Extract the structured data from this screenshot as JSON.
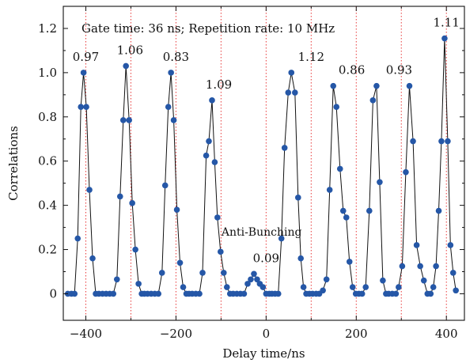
{
  "chart_data": {
    "type": "scatter",
    "title": "",
    "xlabel": "Delay time/ns",
    "ylabel": "Correlations",
    "xlim": [
      -450,
      440
    ],
    "ylim": [
      -0.12,
      1.3
    ],
    "xticks": [
      -400,
      -200,
      0,
      200,
      400
    ],
    "xtick_labels": [
      "−400",
      "−200",
      "0",
      "200",
      "400"
    ],
    "yticks": [
      0,
      0.2,
      0.4,
      0.6,
      0.8,
      1.0,
      1.2
    ],
    "ytick_labels": [
      "0",
      "0.2",
      "0.4",
      "0.6",
      "0.8",
      "1.0",
      "1.2"
    ],
    "grid": false,
    "vlines": [
      -400,
      -300,
      -200,
      -100,
      0,
      100,
      200,
      300,
      400
    ],
    "vline_color": "#e83a3a",
    "marker_color": "#2557a7",
    "line_color": "#111111",
    "annotation": "Gate time: 36 ns; Repetition rate: 10 MHz",
    "anti_bunching_label": "Anti-Bunching",
    "peak_labels": [
      {
        "text": "0.97",
        "x": -400,
        "y": 1.0
      },
      {
        "text": "1.06",
        "x": -302,
        "y": 1.03
      },
      {
        "text": "0.83",
        "x": -200,
        "y": 1.0
      },
      {
        "text": "1.09",
        "x": -105,
        "y": 0.875
      },
      {
        "text": "0.09",
        "x": 0,
        "y": 0.09
      },
      {
        "text": "1.12",
        "x": 100,
        "y": 1.0
      },
      {
        "text": "0.86",
        "x": 190,
        "y": 0.94
      },
      {
        "text": "0.93",
        "x": 295,
        "y": 0.94
      },
      {
        "text": "1.11",
        "x": 400,
        "y": 1.155
      }
    ],
    "series": [
      {
        "x": [
          -440,
          -432,
          -425,
          -418,
          -411,
          -405,
          -399,
          -392,
          -385,
          -378,
          -371,
          -363,
          -355,
          -347,
          -339,
          -331,
          -324,
          -317,
          -311,
          -304,
          -297,
          -290,
          -283,
          -276,
          -270,
          -263,
          -255,
          -247,
          -239,
          -231,
          -224,
          -217,
          -211,
          -205,
          -198,
          -191,
          -184,
          -177,
          -171,
          -164,
          -156,
          -148,
          -141,
          -133,
          -127,
          -120,
          -114,
          -108,
          -101,
          -94,
          -87,
          -80,
          -73,
          -65,
          -57,
          -49,
          -41,
          -34,
          -27,
          -20,
          -14,
          -7,
          0,
          7,
          13,
          20,
          27,
          34,
          41,
          49,
          56,
          64,
          71,
          77,
          83,
          89,
          96,
          103,
          111,
          118,
          126,
          134,
          141,
          149,
          156,
          164,
          171,
          178,
          185,
          192,
          199,
          206,
          213,
          221,
          229,
          237,
          245,
          252,
          259,
          266,
          272,
          280,
          288,
          294,
          302,
          310,
          318,
          326,
          334,
          342,
          350,
          358,
          365,
          371,
          377,
          383,
          389,
          396,
          403,
          409,
          415,
          421
        ],
        "y": [
          0,
          0,
          0,
          0.25,
          0.845,
          1.0,
          0.845,
          0.47,
          0.16,
          0,
          0,
          0,
          0,
          0,
          0,
          0.065,
          0.44,
          0.785,
          1.03,
          0.785,
          0.41,
          0.2,
          0.045,
          0,
          0,
          0,
          0,
          0,
          0,
          0.095,
          0.49,
          0.845,
          1.0,
          0.785,
          0.38,
          0.14,
          0.03,
          0,
          0,
          0,
          0,
          0,
          0.095,
          0.625,
          0.69,
          0.875,
          0.595,
          0.345,
          0.19,
          0.095,
          0.03,
          0,
          0,
          0,
          0,
          0,
          0.045,
          0.065,
          0.09,
          0.065,
          0.045,
          0.03,
          0,
          0,
          0,
          0,
          0,
          0.25,
          0.66,
          0.91,
          1.0,
          0.91,
          0.435,
          0.16,
          0.03,
          0,
          0,
          0,
          0,
          0,
          0.015,
          0.065,
          0.47,
          0.94,
          0.845,
          0.565,
          0.375,
          0.345,
          0.145,
          0.03,
          0,
          0,
          0,
          0.03,
          0.375,
          0.875,
          0.94,
          0.505,
          0.06,
          0,
          0,
          0,
          0,
          0.03,
          0.125,
          0.55,
          0.94,
          0.69,
          0.22,
          0.125,
          0.06,
          0,
          0,
          0.03,
          0.125,
          0.375,
          0.69,
          1.155,
          0.69,
          0.22,
          0.095,
          0.015
        ]
      }
    ]
  }
}
